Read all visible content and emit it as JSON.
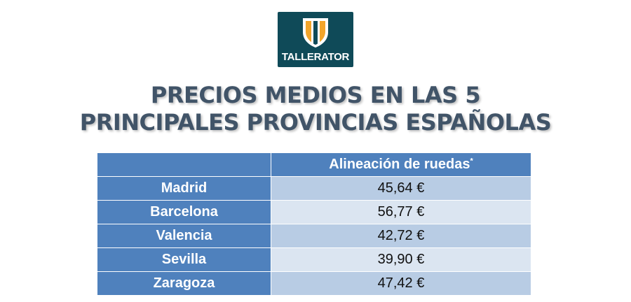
{
  "logo": {
    "text": "TALLERATOR",
    "colors": {
      "background": "#0f4a58",
      "shield_gold": "#f2a52b",
      "shield_white": "#ffffff"
    }
  },
  "title": {
    "line1": "PRECIOS MEDIOS EN LAS 5",
    "line2": "PRINCIPALES PROVINCIAS ESPAÑOLAS",
    "color": "#415468"
  },
  "table": {
    "corner_header": "",
    "column_header": "Alineación de ruedas",
    "column_header_mark": "*",
    "header_color": "#4f81bd",
    "row_colors": [
      "#b8cce4",
      "#dbe5f1"
    ],
    "rows": [
      {
        "city": "Madrid",
        "value": "45,64 €"
      },
      {
        "city": "Barcelona",
        "value": "56,77 €"
      },
      {
        "city": "Valencia",
        "value": "42,72 €"
      },
      {
        "city": "Sevilla",
        "value": "39,90 €"
      },
      {
        "city": "Zaragoza",
        "value": "47,42 €"
      }
    ]
  }
}
